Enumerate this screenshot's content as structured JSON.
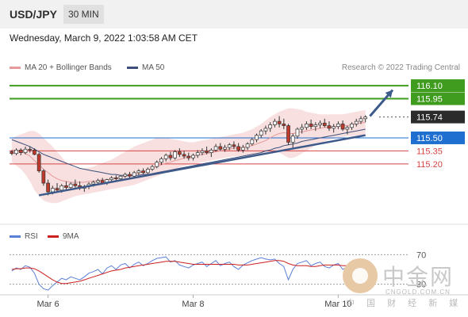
{
  "header": {
    "pair": "USD/JPY",
    "timeframe": "30 MIN"
  },
  "datetime": "Wednesday, March 9, 2022 1:03:58 AM CET",
  "legend": {
    "items": [
      {
        "label": "MA 20 + Bollinger Bands",
        "color": "#e89a9a"
      },
      {
        "label": "MA 50",
        "color": "#3b4f7a"
      }
    ],
    "credit": "Research © 2022 Trading Central"
  },
  "rsi_legend": {
    "items": [
      {
        "label": "RSI",
        "color": "#5b7fd6"
      },
      {
        "label": "9MA",
        "color": "#cc1f1f"
      }
    ]
  },
  "watermark": {
    "text_cn": "中金网",
    "url": "CNGOLD.COM.CN",
    "sub": "中 国 财 经 新 媒 体"
  },
  "colors": {
    "up": "#ffffff",
    "down": "#c0392b",
    "wick": "#333333",
    "trendline": "#3d5a8a",
    "ma50": "#3b4f7a",
    "boll": "#f6d6d6",
    "ma20": "#e89a9a",
    "green": "#3f9c1f",
    "blue": "#1f6fd1",
    "red": "#d64545",
    "current": "#2b2b2b"
  },
  "chart_data": {
    "type": "candlestick",
    "y_range": [
      114.68,
      116.21
    ],
    "levels": [
      {
        "value": 116.1,
        "label": "116.10",
        "kind": "resistance",
        "color": "#3f9c1f"
      },
      {
        "value": 115.95,
        "label": "115.95",
        "kind": "resistance",
        "color": "#3f9c1f"
      },
      {
        "value": 115.74,
        "label": "115.74",
        "kind": "current",
        "color": "#2b2b2b"
      },
      {
        "value": 115.5,
        "label": "115.50",
        "kind": "pivot",
        "color": "#1f6fd1"
      },
      {
        "value": 115.35,
        "label": "115.35",
        "kind": "support",
        "color": "#d64545"
      },
      {
        "value": 115.2,
        "label": "115.20",
        "kind": "support",
        "color": "#d64545"
      }
    ],
    "x_labels": [
      "Mar 6",
      "Mar 8",
      "Mar 10"
    ],
    "trendline": {
      "start": {
        "bar": 6,
        "price": 114.84
      },
      "end": {
        "bar": 78,
        "price": 115.53
      }
    },
    "arrow": {
      "from": {
        "bar": 79,
        "price": 115.75
      },
      "to": {
        "bar": 84,
        "price": 116.05
      }
    },
    "candles": [
      [
        115.34,
        115.36,
        115.3,
        115.32
      ],
      [
        115.32,
        115.38,
        115.3,
        115.36
      ],
      [
        115.36,
        115.38,
        115.3,
        115.33
      ],
      [
        115.33,
        115.4,
        115.31,
        115.37
      ],
      [
        115.37,
        115.4,
        115.33,
        115.36
      ],
      [
        115.36,
        115.38,
        115.3,
        115.31
      ],
      [
        115.31,
        115.33,
        115.1,
        115.12
      ],
      [
        115.12,
        115.14,
        114.95,
        114.98
      ],
      [
        114.98,
        115.02,
        114.84,
        114.88
      ],
      [
        114.88,
        114.95,
        114.85,
        114.92
      ],
      [
        114.92,
        114.98,
        114.88,
        114.9
      ],
      [
        114.9,
        114.97,
        114.87,
        114.95
      ],
      [
        114.95,
        115.0,
        114.9,
        114.93
      ],
      [
        114.93,
        114.99,
        114.9,
        114.97
      ],
      [
        114.97,
        115.02,
        114.93,
        114.95
      ],
      [
        114.95,
        115.0,
        114.9,
        114.92
      ],
      [
        114.92,
        114.96,
        114.88,
        114.94
      ],
      [
        114.94,
        114.99,
        114.91,
        114.97
      ],
      [
        114.97,
        115.01,
        114.94,
        114.99
      ],
      [
        114.99,
        115.03,
        114.96,
        115.01
      ],
      [
        115.01,
        115.04,
        114.97,
        114.98
      ],
      [
        114.98,
        115.03,
        114.96,
        115.02
      ],
      [
        115.02,
        115.06,
        115.0,
        115.04
      ],
      [
        115.04,
        115.07,
        115.01,
        115.03
      ],
      [
        115.03,
        115.07,
        115.01,
        115.06
      ],
      [
        115.06,
        115.1,
        115.04,
        115.08
      ],
      [
        115.08,
        115.11,
        115.04,
        115.06
      ],
      [
        115.06,
        115.12,
        115.04,
        115.1
      ],
      [
        115.1,
        115.14,
        115.07,
        115.12
      ],
      [
        115.12,
        115.15,
        115.08,
        115.1
      ],
      [
        115.1,
        115.16,
        115.08,
        115.14
      ],
      [
        115.14,
        115.19,
        115.12,
        115.17
      ],
      [
        115.17,
        115.24,
        115.15,
        115.22
      ],
      [
        115.22,
        115.28,
        115.19,
        115.26
      ],
      [
        115.26,
        115.32,
        115.23,
        115.3
      ],
      [
        115.3,
        115.34,
        115.24,
        115.27
      ],
      [
        115.27,
        115.36,
        115.25,
        115.34
      ],
      [
        115.34,
        115.38,
        115.28,
        115.31
      ],
      [
        115.31,
        115.35,
        115.26,
        115.29
      ],
      [
        115.29,
        115.33,
        115.24,
        115.27
      ],
      [
        115.27,
        115.32,
        115.24,
        115.3
      ],
      [
        115.3,
        115.36,
        115.27,
        115.33
      ],
      [
        115.33,
        115.38,
        115.3,
        115.35
      ],
      [
        115.35,
        115.4,
        115.31,
        115.33
      ],
      [
        115.33,
        115.38,
        115.28,
        115.36
      ],
      [
        115.36,
        115.43,
        115.34,
        115.4
      ],
      [
        115.4,
        115.44,
        115.35,
        115.37
      ],
      [
        115.37,
        115.42,
        115.34,
        115.39
      ],
      [
        115.39,
        115.44,
        115.36,
        115.42
      ],
      [
        115.42,
        115.46,
        115.37,
        115.4
      ],
      [
        115.4,
        115.44,
        115.34,
        115.36
      ],
      [
        115.36,
        115.42,
        115.33,
        115.39
      ],
      [
        115.39,
        115.45,
        115.36,
        115.43
      ],
      [
        115.43,
        115.5,
        115.41,
        115.48
      ],
      [
        115.48,
        115.55,
        115.45,
        115.53
      ],
      [
        115.53,
        115.6,
        115.5,
        115.58
      ],
      [
        115.58,
        115.64,
        115.54,
        115.61
      ],
      [
        115.61,
        115.68,
        115.57,
        115.65
      ],
      [
        115.65,
        115.72,
        115.62,
        115.69
      ],
      [
        115.69,
        115.75,
        115.62,
        115.66
      ],
      [
        115.66,
        115.72,
        115.6,
        115.64
      ],
      [
        115.64,
        115.66,
        115.42,
        115.45
      ],
      [
        115.45,
        115.55,
        115.38,
        115.52
      ],
      [
        115.52,
        115.62,
        115.49,
        115.6
      ],
      [
        115.6,
        115.66,
        115.55,
        115.62
      ],
      [
        115.62,
        115.69,
        115.59,
        115.66
      ],
      [
        115.66,
        115.71,
        115.6,
        115.63
      ],
      [
        115.63,
        115.68,
        115.58,
        115.65
      ],
      [
        115.65,
        115.7,
        115.61,
        115.67
      ],
      [
        115.67,
        115.72,
        115.62,
        115.64
      ],
      [
        115.64,
        115.69,
        115.58,
        115.61
      ],
      [
        115.61,
        115.66,
        115.56,
        115.63
      ],
      [
        115.63,
        115.69,
        115.6,
        115.66
      ],
      [
        115.66,
        115.7,
        115.58,
        115.6
      ],
      [
        115.6,
        115.64,
        115.54,
        115.62
      ],
      [
        115.62,
        115.68,
        115.59,
        115.66
      ],
      [
        115.66,
        115.72,
        115.63,
        115.69
      ],
      [
        115.69,
        115.75,
        115.66,
        115.72
      ],
      [
        115.72,
        115.76,
        115.68,
        115.74
      ]
    ],
    "ma20": [
      115.36,
      115.35,
      115.34,
      115.32,
      115.29,
      115.24,
      115.19,
      115.14,
      115.1,
      115.06,
      115.03,
      115.01,
      115.0,
      114.99,
      114.99,
      114.99,
      114.99,
      115.0,
      115.0,
      115.01,
      115.02,
      115.02,
      115.03,
      115.04,
      115.05,
      115.06,
      115.07,
      115.08,
      115.1,
      115.11,
      115.13,
      115.15,
      115.17,
      115.19,
      115.21,
      115.22,
      115.24,
      115.25,
      115.27,
      115.28,
      115.29,
      115.3,
      115.31,
      115.32,
      115.33,
      115.34,
      115.35,
      115.36,
      115.37,
      115.38,
      115.38,
      115.39,
      115.4,
      115.41,
      115.43,
      115.45,
      115.47,
      115.5,
      115.53,
      115.55,
      115.56,
      115.55,
      115.55,
      115.56,
      115.57,
      115.58,
      115.59,
      115.6,
      115.61,
      115.62,
      115.62,
      115.63,
      115.63,
      115.64,
      115.64,
      115.65,
      115.66,
      115.67,
      115.68
    ],
    "bollinger_upper": [
      115.5,
      115.52,
      115.54,
      115.56,
      115.58,
      115.58,
      115.55,
      115.5,
      115.45,
      115.4,
      115.34,
      115.28,
      115.22,
      115.18,
      115.16,
      115.15,
      115.15,
      115.16,
      115.17,
      115.19,
      115.21,
      115.23,
      115.25,
      115.28,
      115.31,
      115.34,
      115.37,
      115.4,
      115.42,
      115.44,
      115.46,
      115.48,
      115.5,
      115.5,
      115.5,
      115.49,
      115.48,
      115.47,
      115.46,
      115.45,
      115.45,
      115.46,
      115.47,
      115.48,
      115.49,
      115.5,
      115.51,
      115.52,
      115.53,
      115.54,
      115.55,
      115.56,
      115.58,
      115.6,
      115.63,
      115.66,
      115.7,
      115.74,
      115.77,
      115.8,
      115.82,
      115.84,
      115.84,
      115.83,
      115.82,
      115.8,
      115.79,
      115.78,
      115.77,
      115.77,
      115.77,
      115.77,
      115.77,
      115.77,
      115.78,
      115.79,
      115.8,
      115.81,
      115.82
    ],
    "bollinger_lower": [
      115.22,
      115.18,
      115.14,
      115.08,
      115.0,
      114.9,
      114.83,
      114.78,
      114.76,
      114.75,
      114.75,
      114.77,
      114.79,
      114.81,
      114.83,
      114.84,
      114.85,
      114.86,
      114.87,
      114.88,
      114.89,
      114.9,
      114.91,
      114.92,
      114.93,
      114.94,
      114.95,
      114.96,
      114.98,
      115.0,
      115.02,
      115.04,
      115.06,
      115.08,
      115.1,
      115.12,
      115.14,
      115.16,
      115.18,
      115.19,
      115.2,
      115.21,
      115.22,
      115.23,
      115.24,
      115.25,
      115.26,
      115.27,
      115.28,
      115.29,
      115.29,
      115.29,
      115.29,
      115.29,
      115.3,
      115.31,
      115.32,
      115.33,
      115.34,
      115.33,
      115.3,
      115.27,
      115.27,
      115.29,
      115.32,
      115.35,
      115.38,
      115.41,
      115.44,
      115.46,
      115.48,
      115.49,
      115.5,
      115.51,
      115.52,
      115.52,
      115.53,
      115.53,
      115.54
    ],
    "ma50": [
      115.48,
      115.46,
      115.44,
      115.42,
      115.4,
      115.37,
      115.34,
      115.31,
      115.29,
      115.27,
      115.25,
      115.23,
      115.21,
      115.19,
      115.17,
      115.15,
      115.14,
      115.13,
      115.12,
      115.11,
      115.1,
      115.09,
      115.08,
      115.08,
      115.07,
      115.07,
      115.07,
      115.07,
      115.07,
      115.08,
      115.08,
      115.09,
      115.1,
      115.11,
      115.12,
      115.13,
      115.14,
      115.15,
      115.16,
      115.17,
      115.18,
      115.19,
      115.2,
      115.21,
      115.22,
      115.23,
      115.24,
      115.25,
      115.26,
      115.27,
      115.28,
      115.29,
      115.3,
      115.31,
      115.32,
      115.33,
      115.35,
      115.36,
      115.38,
      115.39,
      115.41,
      115.42,
      115.43,
      115.44,
      115.46,
      115.47,
      115.48,
      115.49,
      115.5,
      115.51,
      115.52,
      115.53,
      115.54,
      115.55,
      115.56,
      115.57,
      115.58,
      115.59,
      115.6
    ],
    "rsi": {
      "range": [
        20,
        80
      ],
      "levels": [
        {
          "value": 70,
          "label": "70"
        },
        {
          "value": 30,
          "label": "30"
        }
      ],
      "rsi": [
        48,
        52,
        50,
        55,
        53,
        45,
        30,
        24,
        22,
        28,
        33,
        38,
        36,
        40,
        38,
        36,
        40,
        45,
        47,
        50,
        44,
        52,
        55,
        50,
        56,
        58,
        52,
        57,
        60,
        55,
        58,
        62,
        65,
        66,
        67,
        60,
        62,
        56,
        54,
        52,
        56,
        58,
        60,
        54,
        58,
        62,
        55,
        58,
        60,
        54,
        50,
        56,
        59,
        62,
        64,
        66,
        64,
        63,
        64,
        58,
        54,
        36,
        50,
        58,
        60,
        62,
        55,
        58,
        60,
        54,
        52,
        56,
        58,
        50,
        54,
        58,
        60,
        62,
        63
      ],
      "ma": [
        50,
        51,
        51,
        52,
        52,
        51,
        48,
        44,
        40,
        36,
        33,
        31,
        31,
        32,
        33,
        34,
        36,
        38,
        40,
        42,
        44,
        46,
        48,
        49,
        50,
        52,
        53,
        54,
        55,
        56,
        57,
        58,
        59,
        60,
        61,
        61,
        61,
        60,
        59,
        58,
        57,
        57,
        57,
        57,
        57,
        57,
        57,
        57,
        57,
        57,
        56,
        56,
        56,
        57,
        58,
        59,
        60,
        61,
        62,
        62,
        61,
        58,
        56,
        55,
        55,
        55,
        54,
        54,
        55,
        56,
        56,
        56,
        56,
        55,
        55,
        55,
        56,
        57,
        58
      ]
    }
  }
}
